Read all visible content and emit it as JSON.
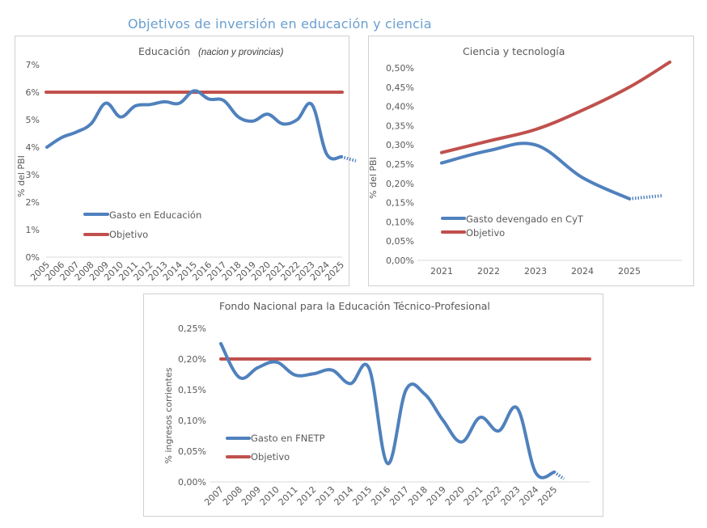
{
  "page": {
    "title": "Objetivos de inversión en educación y ciencia"
  },
  "colors": {
    "series": "#4f81bd",
    "target": "#c0504d",
    "title": "#6a9fd0",
    "text": "#595959",
    "axis": "#d9d9d9"
  },
  "chart_data": [
    {
      "id": "educacion",
      "type": "line",
      "title": "Educación",
      "subtitle": "(nacion y provincias)",
      "xlabel": "",
      "ylabel": "% del PBI",
      "ylim": [
        0,
        7
      ],
      "yticks": [
        "0%",
        "1%",
        "2%",
        "3%",
        "4%",
        "5%",
        "6%",
        "7%"
      ],
      "ytick_values": [
        0,
        1,
        2,
        3,
        4,
        5,
        6,
        7
      ],
      "grid": false,
      "legend_position": "lower-left",
      "categories": [
        "2005",
        "2006",
        "2007",
        "2008",
        "2009",
        "2010",
        "2011",
        "2012",
        "2013",
        "2014",
        "2015",
        "2016",
        "2017",
        "2018",
        "2019",
        "2020",
        "2021",
        "2022",
        "2023",
        "2024",
        "2025"
      ],
      "series": [
        {
          "name": "Gasto en Educación",
          "color": "#4f81bd",
          "values": [
            4.0,
            4.35,
            4.55,
            4.85,
            5.6,
            5.1,
            5.5,
            5.55,
            5.65,
            5.6,
            6.05,
            5.75,
            5.7,
            5.1,
            4.95,
            5.2,
            4.85,
            5.0,
            5.55,
            3.75,
            3.65
          ],
          "projected_to": 3.5
        },
        {
          "name": "Objetivo",
          "color": "#c0504d",
          "values": [
            6,
            6,
            6,
            6,
            6,
            6,
            6,
            6,
            6,
            6,
            6,
            6,
            6,
            6,
            6,
            6,
            6,
            6,
            6,
            6,
            6
          ]
        }
      ]
    },
    {
      "id": "cyt",
      "type": "line",
      "title": "Ciencia y tecnología",
      "xlabel": "",
      "ylabel": "% del PBI",
      "ylim": [
        0,
        0.5
      ],
      "yticks": [
        "0,00%",
        "0,05%",
        "0,10%",
        "0,15%",
        "0,20%",
        "0,25%",
        "0,30%",
        "0,35%",
        "0,40%",
        "0,45%",
        "0,50%"
      ],
      "ytick_values": [
        0,
        0.05,
        0.1,
        0.15,
        0.2,
        0.25,
        0.3,
        0.35,
        0.4,
        0.45,
        0.5
      ],
      "grid": false,
      "legend_position": "lower-left",
      "categories": [
        "2021",
        "2022",
        "2023",
        "2024",
        "2025"
      ],
      "series": [
        {
          "name": "Gasto devengado en CyT",
          "color": "#4f81bd",
          "values": [
            0.253,
            0.285,
            0.3,
            0.215,
            0.16
          ],
          "projected_to": 0.168
        },
        {
          "name": "Objetivo",
          "color": "#c0504d",
          "values": [
            0.28,
            0.31,
            0.34,
            0.39,
            0.45
          ],
          "extended_to": 0.515
        }
      ]
    },
    {
      "id": "fnetp",
      "type": "line",
      "title": "Fondo Nacional para la Educación Técnico-Profesional",
      "xlabel": "",
      "ylabel": "% ingresos corrientes",
      "ylim": [
        0,
        0.25
      ],
      "yticks": [
        "0,00%",
        "0,05%",
        "0,10%",
        "0,15%",
        "0,20%",
        "0,25%"
      ],
      "ytick_values": [
        0,
        0.05,
        0.1,
        0.15,
        0.2,
        0.25
      ],
      "grid": false,
      "legend_position": "lower-left",
      "categories": [
        "2007",
        "2008",
        "2009",
        "2010",
        "2011",
        "2012",
        "2013",
        "2014",
        "2015",
        "2016",
        "2017",
        "2018",
        "2019",
        "2020",
        "2021",
        "2022",
        "2023",
        "2024",
        "2025"
      ],
      "series": [
        {
          "name": "Gasto en FNETP",
          "color": "#4f81bd",
          "values": [
            0.225,
            0.17,
            0.186,
            0.195,
            0.174,
            0.176,
            0.182,
            0.16,
            0.185,
            0.03,
            0.15,
            0.143,
            0.1,
            0.065,
            0.105,
            0.083,
            0.12,
            0.015,
            0.016
          ],
          "projected_to": 0.005
        },
        {
          "name": "Objetivo",
          "color": "#c0504d",
          "values": [
            0.2,
            0.2,
            0.2,
            0.2,
            0.2,
            0.2,
            0.2,
            0.2,
            0.2,
            0.2,
            0.2,
            0.2,
            0.2,
            0.2,
            0.2,
            0.2,
            0.2,
            0.2,
            0.2
          ]
        }
      ]
    }
  ]
}
